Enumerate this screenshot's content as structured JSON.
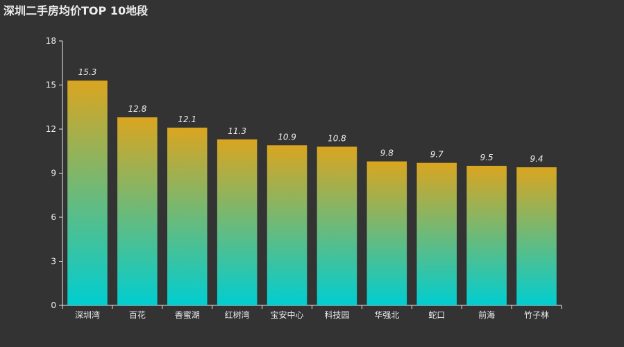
{
  "chart_data": {
    "type": "bar",
    "title": "深圳二手房均价TOP 10地段",
    "xlabel": "",
    "ylabel": "",
    "categories": [
      "深圳湾",
      "百花",
      "香蜜湖",
      "红树湾",
      "宝安中心",
      "科技园",
      "华强北",
      "蛇口",
      "前海",
      "竹子林"
    ],
    "values": [
      15.3,
      12.8,
      12.1,
      11.3,
      10.9,
      10.8,
      9.8,
      9.7,
      9.5,
      9.4
    ],
    "ylim": [
      0,
      18
    ],
    "yticks": [
      0,
      3,
      6,
      9,
      12,
      15,
      18
    ],
    "grid": false,
    "legend": "none",
    "colors": {
      "bar_top": "#daa520",
      "bar_bottom": "#00ced1",
      "axis": "#eeeeee",
      "background": "#333333"
    }
  }
}
